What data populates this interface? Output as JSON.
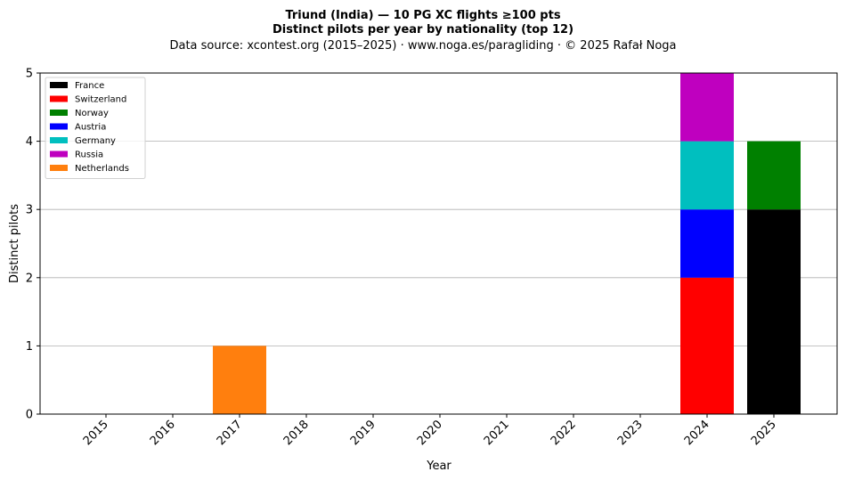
{
  "chart_data": {
    "type": "bar",
    "stacked": true,
    "title": "Triund (India)  —  10 PG XC flights ≥100 pts",
    "subtitle": "Distinct pilots per year by nationality (top 12)",
    "source": "Data source: xcontest.org (2015–2025)  ·  www.noga.es/paragliding  ·  © 2025 Rafał Noga",
    "xlabel": "Year",
    "ylabel": "Distinct pilots",
    "ylim": [
      0,
      5
    ],
    "yticks": [
      "0",
      "1",
      "2",
      "3",
      "4",
      "5"
    ],
    "grid": "y",
    "legend_position": "top-left",
    "categories": [
      "2015",
      "2016",
      "2017",
      "2018",
      "2019",
      "2020",
      "2021",
      "2022",
      "2023",
      "2024",
      "2025"
    ],
    "series": [
      {
        "name": "France",
        "color": "#000000",
        "values": [
          0,
          0,
          0,
          0,
          0,
          0,
          0,
          0,
          0,
          0,
          3
        ]
      },
      {
        "name": "Switzerland",
        "color": "#ff0000",
        "values": [
          0,
          0,
          0,
          0,
          0,
          0,
          0,
          0,
          0,
          2,
          0
        ]
      },
      {
        "name": "Norway",
        "color": "#008000",
        "values": [
          0,
          0,
          0,
          0,
          0,
          0,
          0,
          0,
          0,
          0,
          1
        ]
      },
      {
        "name": "Austria",
        "color": "#0000ff",
        "values": [
          0,
          0,
          0,
          0,
          0,
          0,
          0,
          0,
          0,
          1,
          0
        ]
      },
      {
        "name": "Germany",
        "color": "#00bfbf",
        "values": [
          0,
          0,
          0,
          0,
          0,
          0,
          0,
          0,
          0,
          1,
          0
        ]
      },
      {
        "name": "Russia",
        "color": "#bf00bf",
        "values": [
          0,
          0,
          0,
          0,
          0,
          0,
          0,
          0,
          0,
          1,
          0
        ]
      },
      {
        "name": "Netherlands",
        "color": "#ff7f0e",
        "values": [
          0,
          0,
          1,
          0,
          0,
          0,
          0,
          0,
          0,
          0,
          0
        ]
      }
    ]
  }
}
